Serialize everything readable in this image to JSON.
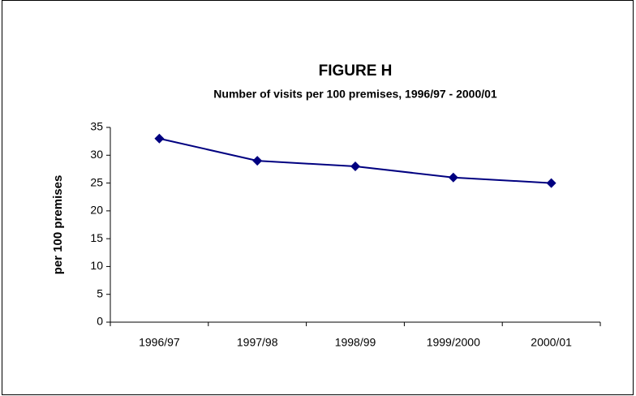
{
  "chart_data": {
    "type": "line",
    "title": "FIGURE H",
    "subtitle": "Number of visits per 100 premises, 1996/97 - 2000/01",
    "y_label": "per 100 premises",
    "categories": [
      "1996/97",
      "1997/98",
      "1998/99",
      "1999/2000",
      "2000/01"
    ],
    "series": [
      {
        "name": "visits",
        "color": "#000080",
        "values": [
          33,
          29,
          28,
          26,
          25
        ]
      }
    ],
    "ylim": [
      0,
      35
    ],
    "yticks": [
      0,
      5,
      10,
      15,
      20,
      25,
      30,
      35
    ],
    "grid": false
  }
}
